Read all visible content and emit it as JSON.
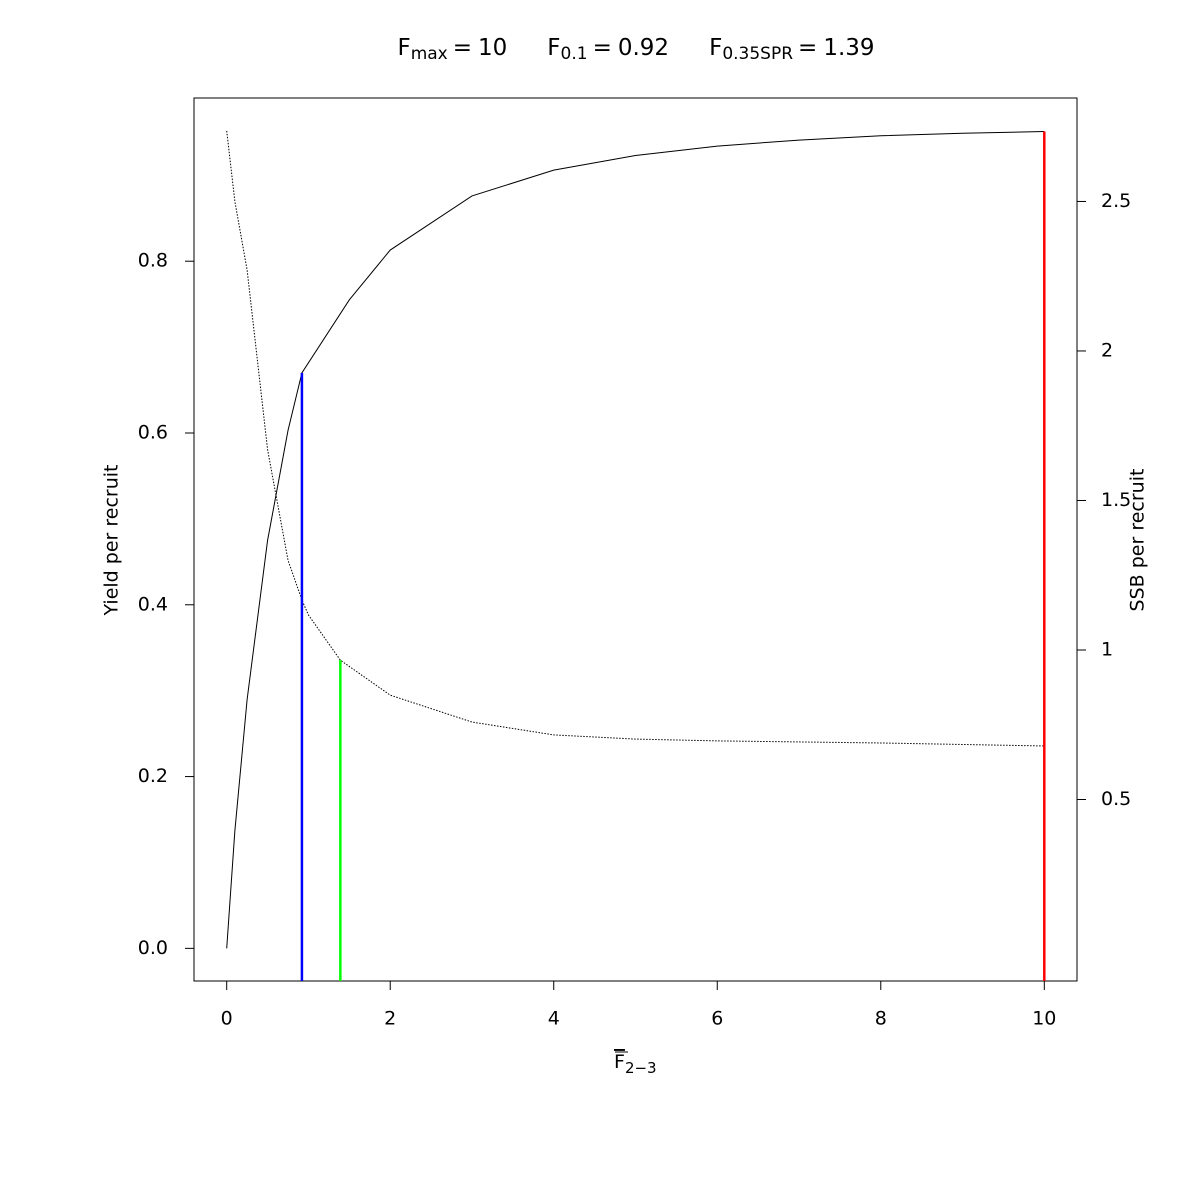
{
  "chart_data": {
    "type": "line",
    "title_parts": [
      {
        "name": "F",
        "subscript": "max",
        "operator": "=",
        "value": 10,
        "color": "#ff0000",
        "top": 0.951,
        "axis": "y"
      },
      {
        "name": "F",
        "subscript": "0.1",
        "operator": "=",
        "value": 0.92,
        "color": "#0000ff",
        "top": 0.67,
        "axis": "y"
      },
      {
        "name": "F",
        "subscript": "0.35SPR",
        "operator": "=",
        "value": 1.39,
        "color": "#00ff00",
        "top": 0.966,
        "axis": "y2"
      }
    ],
    "xlabel": "F",
    "xlabel_subscript": "2−3",
    "ylabel": "Yield per recruit",
    "y2label": "SSB per recruit",
    "xlim": [
      -0.4,
      10.4
    ],
    "ylim": [
      -0.038,
      0.99
    ],
    "y2lim": [
      -0.107,
      2.846
    ],
    "xticks": [
      0,
      2,
      4,
      6,
      8,
      10
    ],
    "yticks": [
      {
        "value": 0,
        "label": "0.0"
      },
      0.2,
      0.4,
      0.6,
      0.8
    ],
    "y2ticks": [
      0.5,
      1,
      1.5,
      2,
      2.5
    ],
    "series": [
      {
        "name": "Yield per recruit",
        "color": "#000000",
        "dash": "solid",
        "x": [
          0,
          0.1,
          0.25,
          0.5,
          0.75,
          0.92,
          1.5,
          2,
          3,
          4,
          5,
          6,
          7,
          8,
          9,
          10
        ],
        "values": [
          0,
          0.137,
          0.29,
          0.475,
          0.603,
          0.67,
          0.755,
          0.813,
          0.876,
          0.906,
          0.923,
          0.934,
          0.941,
          0.946,
          0.949,
          0.951
        ]
      },
      {
        "name": "SSB per recruit",
        "color": "#000000",
        "dash": "dotted",
        "axis": "y2",
        "x": [
          0,
          0.1,
          0.25,
          0.5,
          0.75,
          0.92,
          1,
          1.39,
          2,
          3,
          4,
          5,
          6,
          8,
          10
        ],
        "values": [
          2.736,
          2.5,
          2.27,
          1.67,
          1.3,
          1.167,
          1.117,
          0.966,
          0.849,
          0.759,
          0.716,
          0.702,
          0.696,
          0.689,
          0.679
        ]
      }
    ]
  }
}
